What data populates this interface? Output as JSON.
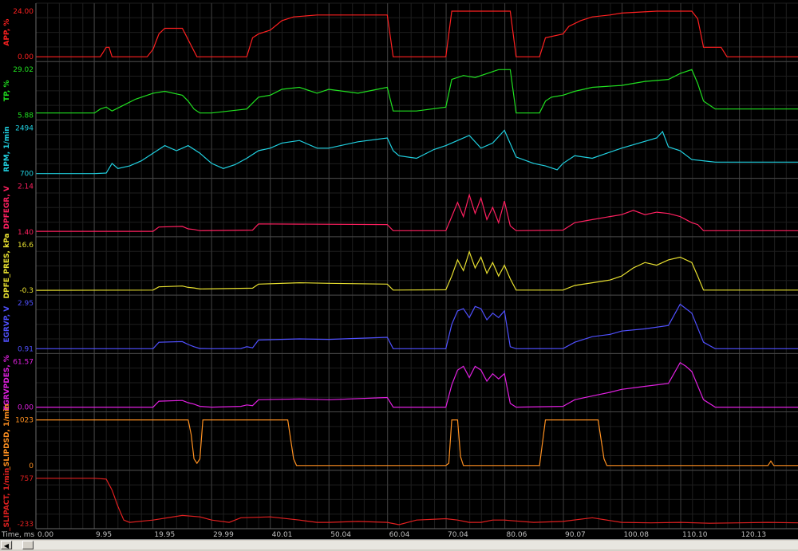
{
  "chart_data": {
    "type": "line",
    "xlabel": "Time, ms",
    "x_ticks": [
      "0.00",
      "9.95",
      "19.95",
      "29.99",
      "40.01",
      "50.04",
      "60.04",
      "70.04",
      "80.06",
      "90.07",
      "100.08",
      "110.10",
      "120.13"
    ],
    "xlim": [
      0,
      130.13
    ],
    "channels": [
      {
        "name": "APP, %",
        "color": "#ff2020",
        "ylim": [
          0.0,
          24.0
        ],
        "ymax_label": "24.00",
        "ymin_label": "0.00",
        "x": [
          0,
          11,
          12,
          12.5,
          13,
          19,
          20,
          21,
          22,
          25,
          26,
          27.5,
          28,
          36,
          37,
          38,
          40,
          42,
          44,
          48,
          50,
          60,
          61,
          70,
          71,
          73,
          74,
          81,
          82,
          86,
          87,
          90,
          91,
          93,
          95,
          98,
          100,
          106,
          108,
          109,
          110,
          111,
          112,
          113,
          114,
          117,
          118,
          126,
          130.13
        ],
        "values": [
          0,
          0,
          5,
          5,
          0,
          0,
          4,
          12,
          15,
          15,
          9,
          0,
          0,
          0,
          10,
          12,
          14,
          19,
          21,
          22,
          22,
          22,
          0,
          0,
          24,
          24,
          24,
          24,
          0,
          0,
          10,
          12,
          16,
          19,
          21,
          22,
          23,
          24,
          24,
          24,
          24,
          24,
          24,
          20,
          5,
          5,
          0,
          0,
          0
        ]
      },
      {
        "name": "TP, %",
        "color": "#20e020",
        "ylim": [
          5.88,
          29.02
        ],
        "ymax_label": "29.02",
        "ymin_label": "5.88",
        "x": [
          0,
          5,
          10,
          11,
          12,
          13,
          15,
          17,
          20,
          22,
          25,
          26,
          27,
          28,
          30,
          36,
          37,
          38,
          40,
          42,
          45,
          48,
          50,
          55,
          60,
          61,
          65,
          70,
          71,
          73,
          75,
          79,
          81,
          82,
          86,
          87,
          88,
          90,
          92,
          95,
          100,
          104,
          108,
          110,
          112,
          113,
          114,
          116,
          130.13
        ],
        "values": [
          7,
          7,
          7,
          9,
          10,
          8,
          11,
          14,
          17,
          18,
          16,
          13,
          9,
          7,
          7,
          9,
          12,
          15,
          16,
          19,
          20,
          17,
          19,
          17,
          20,
          8,
          8,
          10,
          24,
          26,
          25,
          29,
          29,
          7,
          7,
          13,
          15,
          16,
          18,
          20,
          21,
          23,
          24,
          27,
          29,
          22,
          13,
          9,
          9
        ]
      },
      {
        "name": "RPM, 1/min",
        "color": "#20d0e0",
        "ylim": [
          700,
          2494
        ],
        "ymax_label": "2494",
        "ymin_label": "700",
        "x": [
          0,
          10,
          12,
          13,
          14,
          16,
          18,
          20,
          22,
          24,
          25,
          26,
          28,
          30,
          32,
          34,
          36,
          38,
          40,
          42,
          45,
          48,
          50,
          55,
          60,
          61,
          62,
          65,
          68,
          70,
          72,
          74,
          76,
          78,
          80,
          82,
          85,
          87,
          89,
          90,
          92,
          95,
          100,
          106,
          107,
          108,
          110,
          112,
          116,
          130.13
        ],
        "values": [
          700,
          700,
          720,
          1100,
          900,
          1000,
          1200,
          1500,
          1800,
          1600,
          1700,
          1800,
          1500,
          1100,
          900,
          1050,
          1300,
          1600,
          1700,
          1900,
          2000,
          1700,
          1700,
          1950,
          2100,
          1600,
          1400,
          1300,
          1650,
          1800,
          2000,
          2200,
          1700,
          1900,
          2400,
          1350,
          1100,
          1000,
          850,
          1100,
          1400,
          1300,
          1700,
          2100,
          2350,
          1750,
          1600,
          1250,
          1150,
          1150
        ]
      },
      {
        "name": "DPFEGR, V",
        "color": "#ff2060",
        "ylim": [
          1.4,
          2.14
        ],
        "ymax_label": "2.14",
        "ymin_label": "1.40",
        "x": [
          0,
          20,
          21,
          25,
          26,
          27,
          28,
          37,
          38,
          60,
          61,
          70,
          71,
          72,
          73,
          74,
          75,
          76,
          77,
          78,
          79,
          80,
          81,
          82,
          90,
          92,
          95,
          98,
          100,
          102,
          104,
          106,
          108,
          110,
          112,
          113,
          114,
          130.13
        ],
        "values": [
          1.41,
          1.41,
          1.48,
          1.49,
          1.45,
          1.44,
          1.42,
          1.43,
          1.53,
          1.52,
          1.42,
          1.42,
          1.65,
          1.88,
          1.65,
          2.0,
          1.7,
          1.95,
          1.6,
          1.8,
          1.55,
          1.9,
          1.5,
          1.42,
          1.43,
          1.55,
          1.6,
          1.65,
          1.68,
          1.75,
          1.68,
          1.72,
          1.7,
          1.65,
          1.55,
          1.52,
          1.42,
          1.42
        ]
      },
      {
        "name": "DPFE_PRES, kPa",
        "color": "#e8e030",
        "ylim": [
          -0.3,
          16.6
        ],
        "ymax_label": "16.6",
        "ymin_label": "-0.3",
        "x": [
          0,
          20,
          21,
          25,
          26,
          27,
          28,
          37,
          38,
          45,
          50,
          60,
          61,
          70,
          71,
          72,
          73,
          74,
          75,
          76,
          77,
          78,
          79,
          80,
          81,
          82,
          90,
          92,
          95,
          98,
          100,
          102,
          104,
          106,
          108,
          110,
          112,
          113,
          114,
          130.13
        ],
        "values": [
          -0.3,
          -0.2,
          1.0,
          1.3,
          0.8,
          0.6,
          0.2,
          0.5,
          2.0,
          2.5,
          2.3,
          2.0,
          -0.2,
          -0.1,
          5,
          11,
          7,
          14,
          8,
          12,
          6,
          10,
          5,
          9,
          4,
          -0.2,
          -0.2,
          1.5,
          2.5,
          3.5,
          5,
          8,
          10,
          9,
          11,
          12,
          10,
          5,
          -0.2,
          -0.2
        ]
      },
      {
        "name": "EGRVP, V",
        "color": "#5050ff",
        "ylim": [
          0.91,
          2.95
        ],
        "ymax_label": "2.95",
        "ymin_label": "0.91",
        "x": [
          0,
          20,
          21,
          25,
          26,
          27,
          28,
          30,
          35,
          36,
          37,
          38,
          45,
          50,
          60,
          61,
          70,
          71,
          72,
          73,
          74,
          75,
          76,
          77,
          78,
          79,
          80,
          81,
          82,
          90,
          92,
          95,
          98,
          100,
          104,
          108,
          110,
          111,
          112,
          114,
          116,
          130.13
        ],
        "values": [
          0.91,
          0.91,
          1.2,
          1.23,
          1.1,
          1.0,
          0.92,
          0.91,
          0.92,
          1.0,
          0.95,
          1.3,
          1.35,
          1.33,
          1.42,
          0.91,
          0.91,
          2.0,
          2.6,
          2.7,
          2.3,
          2.8,
          2.7,
          2.2,
          2.5,
          2.3,
          2.6,
          1.0,
          0.91,
          0.92,
          1.2,
          1.45,
          1.55,
          1.7,
          1.8,
          1.95,
          2.9,
          2.7,
          2.5,
          1.2,
          0.91,
          0.91
        ]
      },
      {
        "name": "EGRVPDES, %",
        "color": "#e020e0",
        "ylim": [
          0.0,
          61.57
        ],
        "ymax_label": "61.57",
        "ymin_label": "0.00",
        "x": [
          0,
          20,
          21,
          25,
          26,
          27,
          28,
          30,
          35,
          36,
          37,
          38,
          45,
          50,
          60,
          61,
          70,
          71,
          72,
          73,
          74,
          75,
          76,
          77,
          78,
          79,
          80,
          81,
          82,
          90,
          92,
          95,
          98,
          100,
          104,
          108,
          110,
          111,
          112,
          114,
          116,
          130.13
        ],
        "values": [
          0,
          0,
          8,
          9,
          6,
          4,
          1,
          0,
          1,
          3,
          2,
          10,
          11,
          10,
          13,
          0,
          0,
          30,
          50,
          55,
          40,
          55,
          50,
          35,
          45,
          38,
          45,
          5,
          0,
          1,
          10,
          15,
          20,
          24,
          28,
          32,
          60,
          55,
          48,
          10,
          0,
          0
        ]
      },
      {
        "name": "_SLIPDSD, 1/min",
        "label_prefix": "...",
        "color": "#ff9020",
        "ylim": [
          0,
          1023
        ],
        "ymax_label": "1023",
        "ymin_label": "0",
        "x": [
          0,
          26,
          26.5,
          27,
          27.5,
          28,
          28.5,
          43,
          44,
          44.5,
          70,
          70.5,
          71,
          72,
          72.5,
          73,
          86,
          87,
          87.5,
          96,
          97,
          97.5,
          125,
          125.5,
          126,
          130.13
        ],
        "values": [
          1023,
          1023,
          700,
          150,
          50,
          150,
          1023,
          1023,
          150,
          0,
          0,
          50,
          1023,
          1023,
          200,
          0,
          0,
          1023,
          1023,
          1023,
          150,
          0,
          0,
          100,
          0,
          0
        ]
      },
      {
        "name": "SLIPACT, 1/min",
        "label_prefix": "_",
        "color": "#e02020",
        "ylim": [
          -233,
          757
        ],
        "ymax_label": "757",
        "ymin_label": "-233",
        "x": [
          0,
          10,
          12,
          13,
          14,
          15,
          16,
          20,
          25,
          28,
          30,
          33,
          35,
          40,
          45,
          48,
          50,
          55,
          60,
          62,
          65,
          70,
          72,
          74,
          76,
          78,
          80,
          85,
          90,
          95,
          100,
          105,
          110,
          115,
          120,
          125,
          130.13
        ],
        "values": [
          757,
          757,
          740,
          500,
          150,
          -150,
          -200,
          -150,
          -50,
          -80,
          -150,
          -200,
          -100,
          -80,
          -150,
          -200,
          -200,
          -180,
          -200,
          -250,
          -150,
          -120,
          -150,
          -200,
          -200,
          -150,
          -150,
          -200,
          -180,
          -100,
          -200,
          -210,
          -200,
          -220,
          -210,
          -200,
          -210
        ]
      }
    ]
  }
}
